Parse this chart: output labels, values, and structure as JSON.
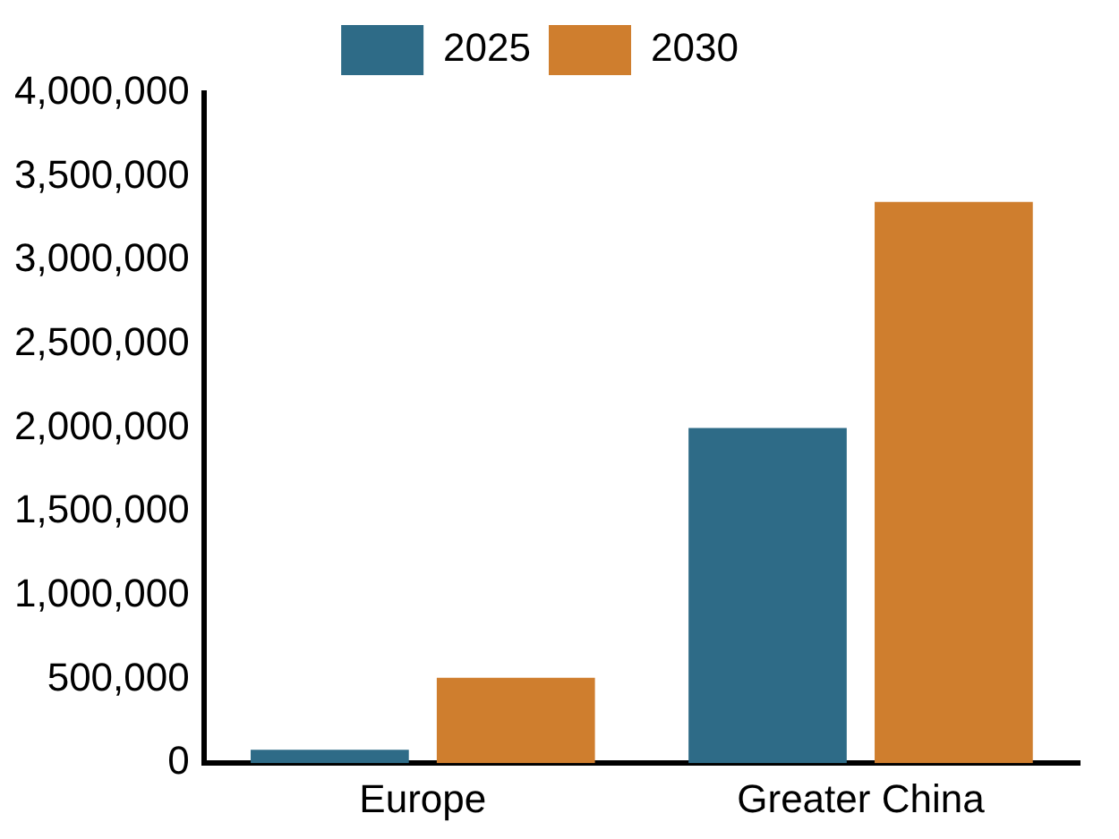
{
  "chart_data": {
    "type": "bar",
    "categories": [
      "Europe",
      "Greater China"
    ],
    "series": [
      {
        "name": "2025",
        "color": "#2e6b87",
        "values": [
          80000,
          2000000
        ]
      },
      {
        "name": "2030",
        "color": "#cf7e2e",
        "values": [
          510000,
          3350000
        ]
      }
    ],
    "ylim": [
      0,
      4000000
    ],
    "yticks": [
      {
        "value": 0,
        "label": "0"
      },
      {
        "value": 500000,
        "label": "500,000"
      },
      {
        "value": 1000000,
        "label": "1,000,000"
      },
      {
        "value": 1500000,
        "label": "1,500,000"
      },
      {
        "value": 2000000,
        "label": "2,000,000"
      },
      {
        "value": 2500000,
        "label": "2,500,000"
      },
      {
        "value": 3000000,
        "label": "3,000,000"
      },
      {
        "value": 3500000,
        "label": "3,500,000"
      },
      {
        "value": 4000000,
        "label": "4,000,000"
      }
    ],
    "grid": false,
    "legend": "top"
  }
}
